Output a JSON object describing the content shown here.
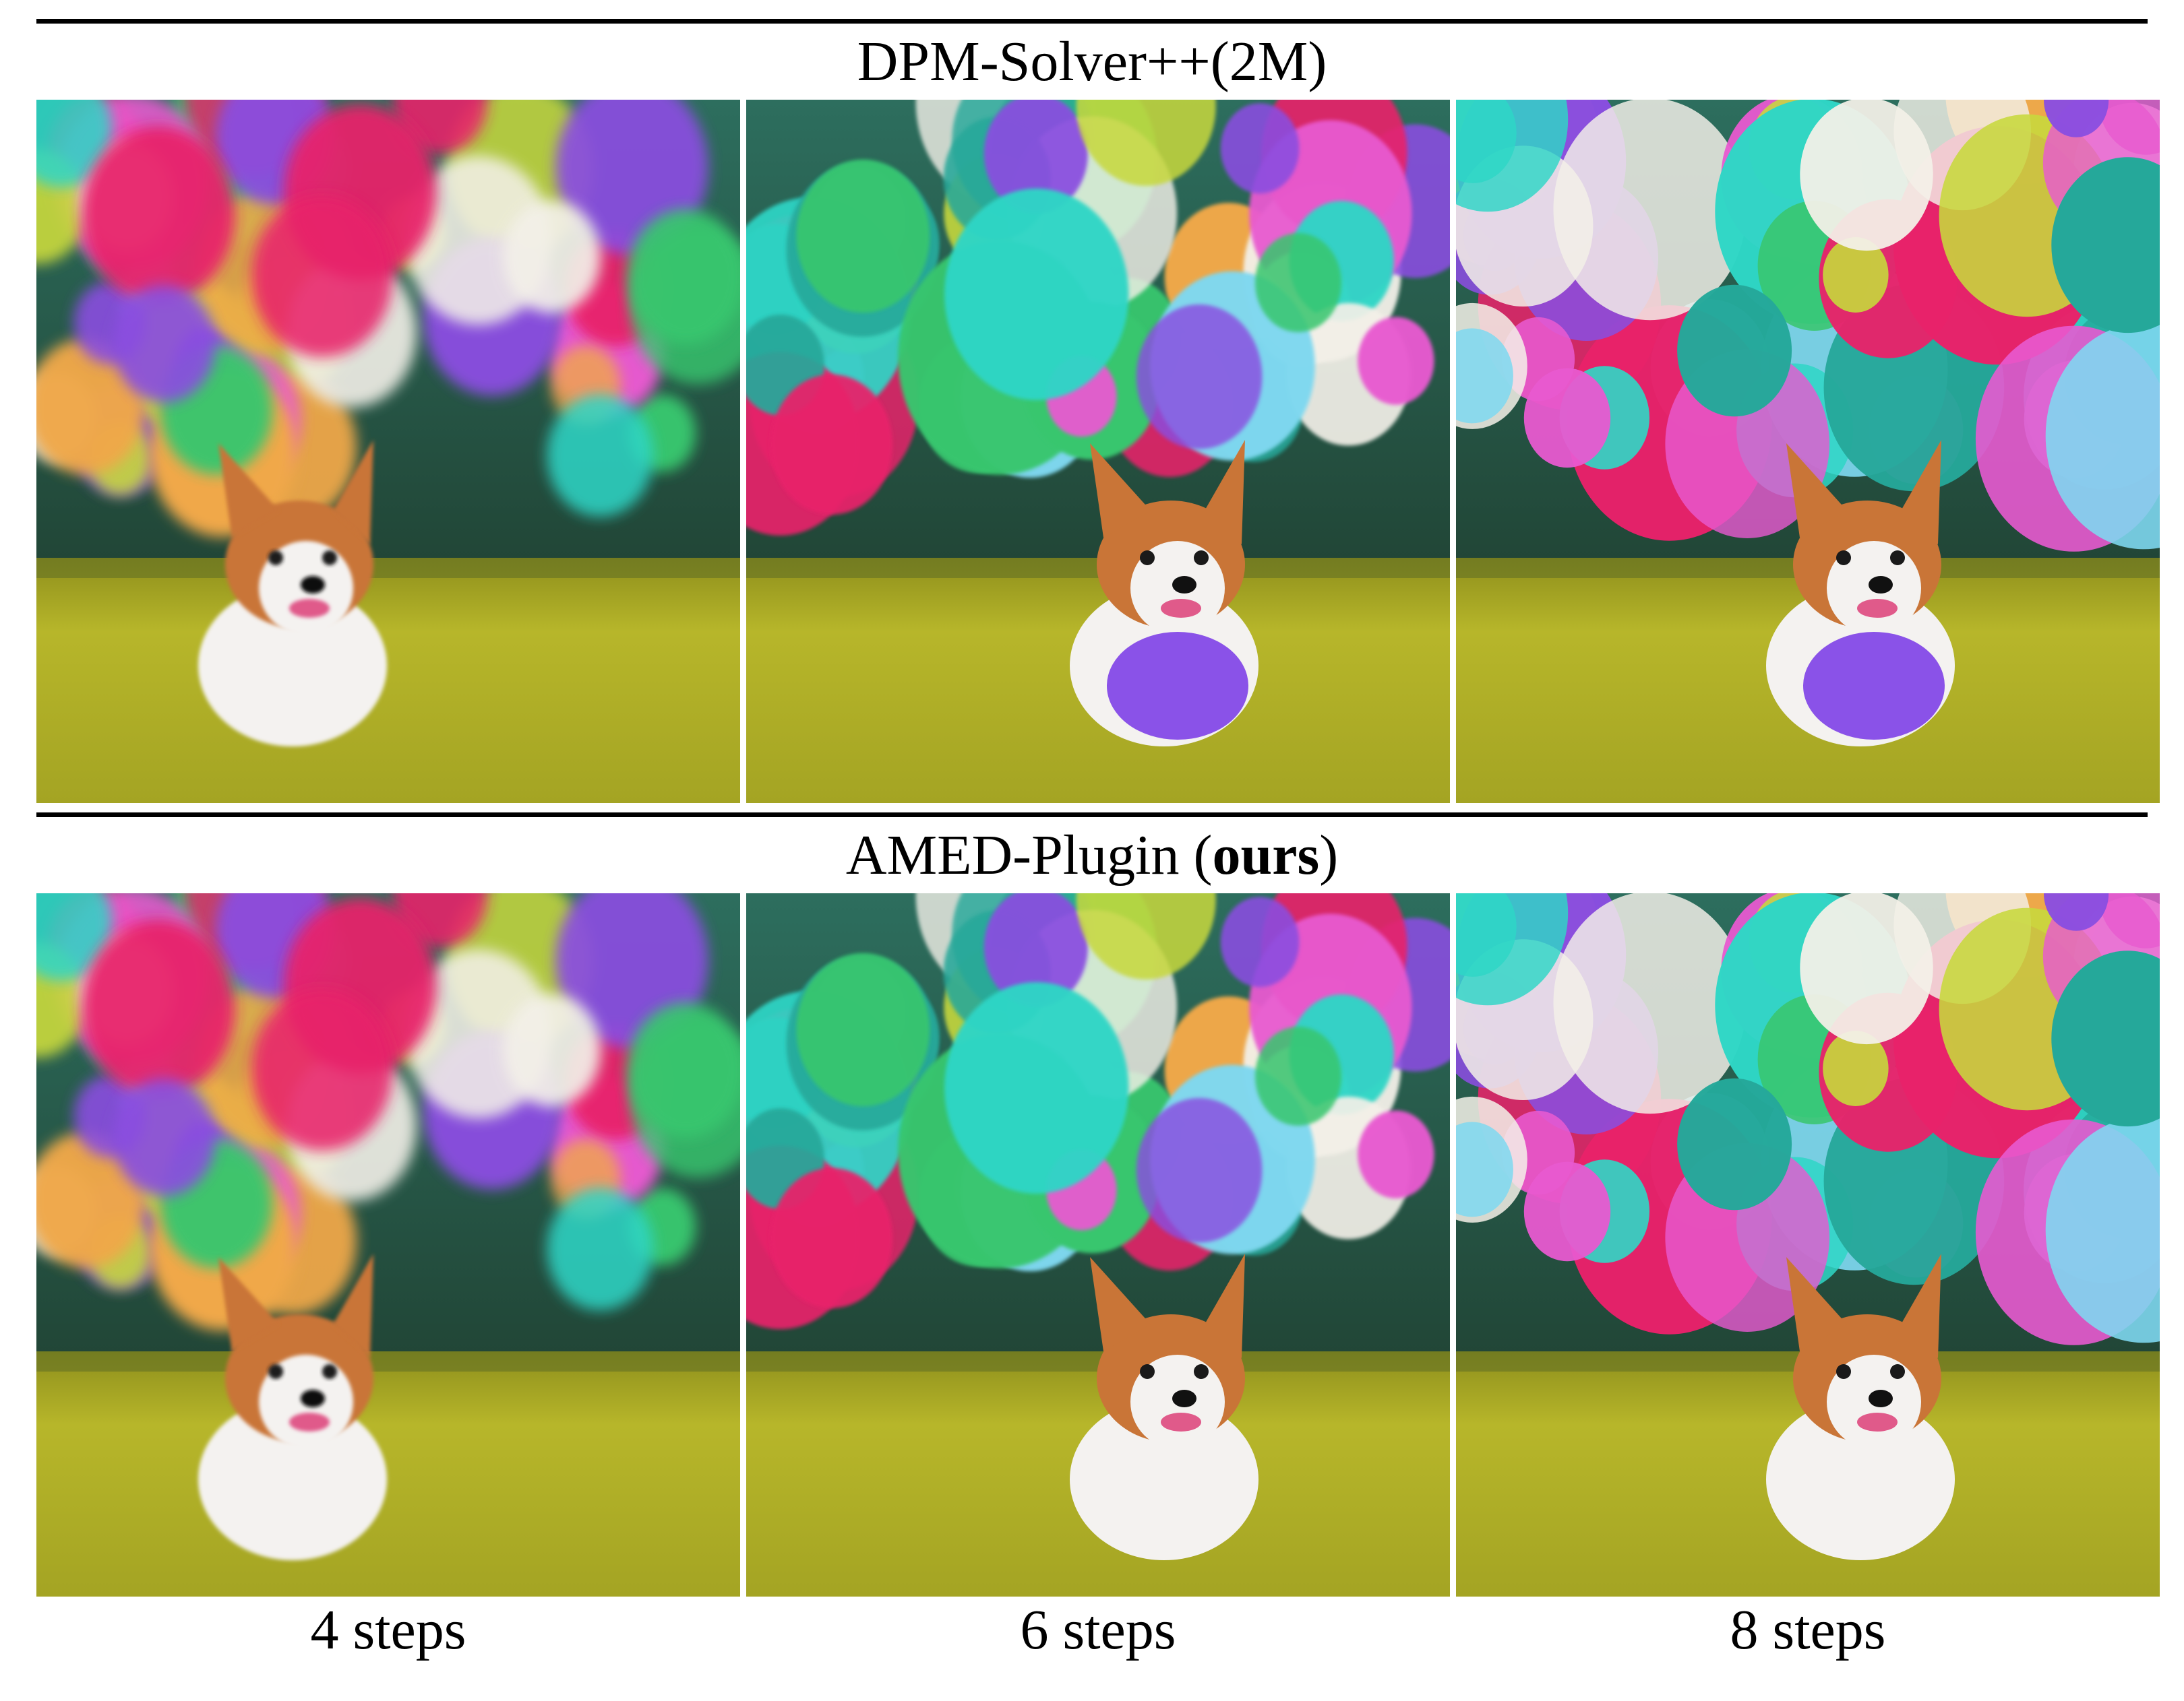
{
  "figure": {
    "top_section_title": "DPM-Solver++(2M)",
    "bottom_section_title_prefix": "AMED-Plugin (",
    "bottom_section_title_bold": "ours",
    "bottom_section_title_suffix": ")",
    "step_labels": [
      "4 steps",
      "6 steps",
      "8 steps"
    ]
  },
  "colors": {
    "grass": "#b7b62a",
    "grass_dark": "#8e8f1c",
    "background_trees": "#1f3a28",
    "balloon_palette": [
      "#e8226a",
      "#8a4ee0",
      "#2fd6c6",
      "#39c66e",
      "#f0a84a",
      "#e85ad0",
      "#25a89a",
      "#7fd8f0",
      "#f3f0e8",
      "#c7d83c"
    ],
    "corgi_fur": "#c97537",
    "corgi_white": "#f4f2f0"
  },
  "panels": [
    {
      "row": "dpm-solver",
      "steps": "4 steps",
      "subject": "corgi on grass with balloons (blurry)"
    },
    {
      "row": "dpm-solver",
      "steps": "6 steps",
      "subject": "corgi with purple balloon"
    },
    {
      "row": "dpm-solver",
      "steps": "8 steps",
      "subject": "smiling corgi with purple balloon"
    },
    {
      "row": "amed-plugin",
      "steps": "4 steps",
      "subject": "corgi on grass with balloons (blurry)"
    },
    {
      "row": "amed-plugin",
      "steps": "6 steps",
      "subject": "corgi sitting on grass"
    },
    {
      "row": "amed-plugin",
      "steps": "8 steps",
      "subject": "corgi sitting on grass"
    }
  ]
}
